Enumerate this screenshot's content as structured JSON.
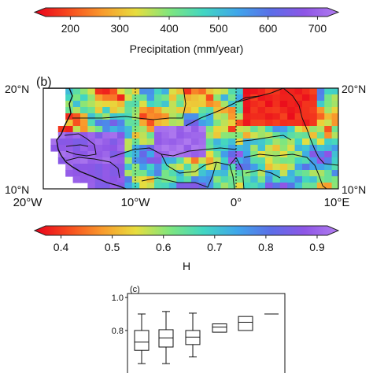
{
  "colorbar_top": {
    "ticks": [
      "200",
      "300",
      "400",
      "500",
      "600",
      "700"
    ],
    "tick_values": [
      200,
      300,
      400,
      500,
      600,
      700
    ],
    "range": [
      150,
      720
    ],
    "label": "Precipitation (mm/year)"
  },
  "map": {
    "panel_label": "(b)",
    "lat_labels": [
      "20°N",
      "10°N"
    ],
    "lat_labels_right": [
      "20°N",
      "10°N"
    ],
    "lon_labels": [
      "20°W",
      "10°W",
      "0°",
      "10°E"
    ],
    "lon_values": [
      -20,
      -10,
      0,
      10
    ]
  },
  "colorbar_bottom": {
    "ticks": [
      "0.4",
      "0.5",
      "0.6",
      "0.7",
      "0.8",
      "0.9"
    ],
    "tick_values": [
      0.4,
      0.5,
      0.6,
      0.7,
      0.8,
      0.9
    ],
    "range": [
      0.37,
      0.92
    ],
    "label": "H"
  },
  "colormap": [
    "#e8001c",
    "#f74a1e",
    "#f99a2c",
    "#e7dd3e",
    "#7fe67e",
    "#42d6c2",
    "#3fa6ea",
    "#5b6ee8",
    "#8e55e6",
    "#b17df0"
  ],
  "chart_data": {
    "type": "box",
    "panel_label": "(c)",
    "ylim": [
      0.6,
      1.0
    ],
    "yticks": [
      "1.0",
      "0.8"
    ],
    "ytick_values": [
      1.0,
      0.8
    ],
    "boxes": [
      {
        "whisker_low": 0.6,
        "q1": 0.68,
        "median": 0.73,
        "q3": 0.8,
        "whisker_high": 0.9
      },
      {
        "whisker_low": 0.6,
        "q1": 0.7,
        "median": 0.755,
        "q3": 0.805,
        "whisker_high": 0.915
      },
      {
        "whisker_low": 0.64,
        "q1": 0.715,
        "median": 0.76,
        "q3": 0.8,
        "whisker_high": 0.905
      },
      {
        "q1": 0.79,
        "median": 0.82,
        "q3": 0.84
      },
      {
        "q1": 0.8,
        "median": 0.85,
        "q3": 0.885
      },
      {
        "median": 0.9
      }
    ]
  }
}
